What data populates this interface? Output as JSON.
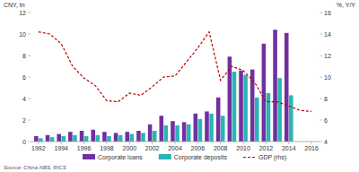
{
  "chart_data": {
    "type": "bar",
    "y_label": "CNY, tn",
    "y2_label": "%, Y/Y",
    "source": "Source: China NBS, RICS",
    "x": [
      1992,
      1993,
      1994,
      1995,
      1996,
      1997,
      1998,
      1999,
      2000,
      2001,
      2002,
      2003,
      2004,
      2005,
      2006,
      2007,
      2008,
      2009,
      2010,
      2011,
      2012,
      2013,
      2014,
      2015,
      2016
    ],
    "xlim": [
      1991.3,
      2016.7
    ],
    "xticks": [
      1992,
      1994,
      1996,
      1998,
      2000,
      2002,
      2004,
      2006,
      2008,
      2010,
      2012,
      2014,
      2016
    ],
    "ylim": [
      0,
      12
    ],
    "yticks": [
      0,
      2,
      4,
      6,
      8,
      10,
      12
    ],
    "y2lim": [
      4,
      16
    ],
    "y2ticks": [
      4,
      6,
      8,
      10,
      12,
      14,
      16
    ],
    "legend": "bottom",
    "series": [
      {
        "name": "Corporate loans",
        "type": "bar",
        "color": "#7030a0",
        "values": [
          0.5,
          0.6,
          0.7,
          0.9,
          1.0,
          1.1,
          0.9,
          0.8,
          0.9,
          1.0,
          1.6,
          2.4,
          1.9,
          1.8,
          2.6,
          2.8,
          4.1,
          7.9,
          6.6,
          6.7,
          9.1,
          10.4,
          10.1,
          null,
          null
        ]
      },
      {
        "name": "Corporate deposits",
        "type": "bar",
        "color": "#2ab5b5",
        "values": [
          0.3,
          0.4,
          0.5,
          0.6,
          0.5,
          0.6,
          0.5,
          0.6,
          0.7,
          0.8,
          1.0,
          1.5,
          1.5,
          1.6,
          2.1,
          2.6,
          2.4,
          6.5,
          6.2,
          4.1,
          4.5,
          5.9,
          4.3,
          null,
          null
        ]
      },
      {
        "name": "GDP (rhs)",
        "type": "line",
        "axis": "y2",
        "color": "#c00000",
        "line_style": "dashed",
        "values": [
          14.2,
          14.0,
          13.1,
          11.0,
          9.9,
          9.2,
          7.8,
          7.7,
          8.5,
          8.3,
          9.1,
          10.0,
          10.1,
          11.4,
          12.7,
          14.2,
          9.7,
          11.0,
          10.6,
          9.5,
          7.7,
          7.7,
          7.3,
          6.9,
          6.8
        ]
      }
    ]
  }
}
